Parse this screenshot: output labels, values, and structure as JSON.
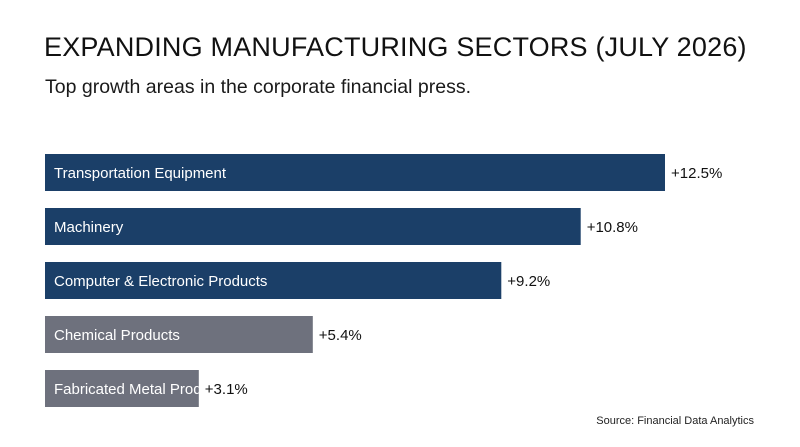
{
  "title": "EXPANDING MANUFACTURING SECTORS (JULY 2026)",
  "subtitle": "Top growth areas in the corporate financial press.",
  "source": "Source: Financial Data Analytics",
  "colors": {
    "highlight_bar": "#1b3f68",
    "muted_bar": "#6e717d",
    "bar_label_text": "#ffffff",
    "value_text": "#111111"
  },
  "chart_data": {
    "type": "bar",
    "orientation": "horizontal",
    "categories": [
      "Transportation Equipment",
      "Machinery",
      "Computer & Electronic Products",
      "Chemical Products",
      "Fabricated Metal Products"
    ],
    "values": [
      12.5,
      10.8,
      9.2,
      5.4,
      3.1
    ],
    "value_labels": [
      "+12.5%",
      "+10.8%",
      "+9.2%",
      "+5.4%",
      "+3.1%"
    ],
    "highlighted": [
      true,
      true,
      true,
      false,
      false
    ],
    "xlim": [
      0,
      12.5
    ],
    "grid": false,
    "legend": "none"
  }
}
